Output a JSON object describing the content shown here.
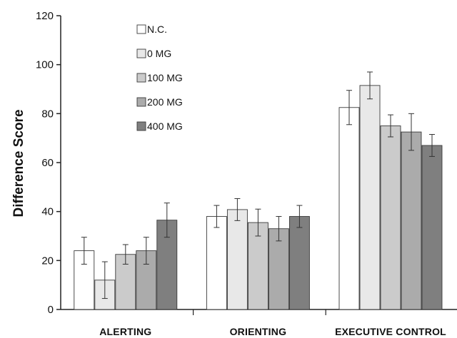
{
  "chart_data": {
    "type": "bar",
    "ylabel": "Difference Score",
    "xlabel": "",
    "ylim": [
      0,
      120
    ],
    "yticks": [
      0,
      20,
      40,
      60,
      80,
      100,
      120
    ],
    "grid": false,
    "legend_position": "top-left",
    "categories": [
      "ALERTING",
      "ORIENTING",
      "EXECUTIVE CONTROL"
    ],
    "series": [
      {
        "name": "N.C.",
        "color": "#ffffff",
        "values": [
          24.0,
          38.0,
          82.5
        ],
        "errors": [
          5.5,
          4.5,
          7.0
        ]
      },
      {
        "name": "0 MG",
        "color": "#e8e8e8",
        "values": [
          12.0,
          40.8,
          91.5
        ],
        "errors": [
          7.5,
          4.5,
          5.5
        ]
      },
      {
        "name": "100 MG",
        "color": "#cbcbcb",
        "values": [
          22.5,
          35.5,
          75.0
        ],
        "errors": [
          4.0,
          5.5,
          4.5
        ]
      },
      {
        "name": "200 MG",
        "color": "#ababab",
        "values": [
          24.0,
          33.0,
          72.5
        ],
        "errors": [
          5.5,
          5.0,
          7.5
        ]
      },
      {
        "name": "400 MG",
        "color": "#7f7f7f",
        "values": [
          36.5,
          38.0,
          67.0
        ],
        "errors": [
          7.0,
          4.5,
          4.5
        ]
      }
    ]
  }
}
